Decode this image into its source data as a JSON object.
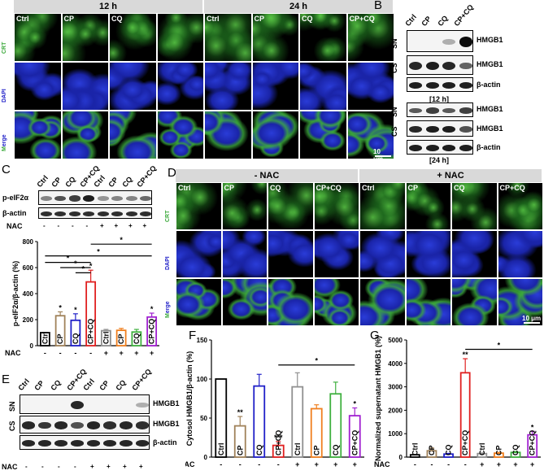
{
  "panel_letters": {
    "a": "A",
    "b": "B",
    "c": "C",
    "d": "D",
    "e": "E",
    "f": "F",
    "g": "G"
  },
  "panel_a": {
    "headers": [
      "12 h",
      "24 h"
    ],
    "columns": [
      "Ctrl",
      "CP",
      "CQ",
      "",
      "Ctrl",
      "CP",
      "CQ",
      "CP+CQ"
    ],
    "rows": [
      "CRT",
      "DAPI",
      "Merge"
    ],
    "scale_bar": "10 μm"
  },
  "panel_b": {
    "lanes": [
      "Ctrl",
      "CP",
      "CQ",
      "CP+CQ"
    ],
    "side": [
      "SN",
      "CS",
      "SN",
      "CS"
    ],
    "rows_12": [
      "HMGB1",
      "HMGB1",
      "β-actin"
    ],
    "time_12": "[12 h]",
    "rows_24": [
      "HMGB1",
      "HMGB1",
      "β-actin"
    ],
    "time_24": "[24 h]"
  },
  "panel_c_blot": {
    "lanes": [
      "Ctrl",
      "CP",
      "CQ",
      "CP+CQ",
      "Ctrl",
      "CP",
      "CQ",
      "CP+CQ"
    ],
    "rows": [
      "p-eIF2α",
      "β-actin"
    ],
    "nac_label": "NAC",
    "nac_signs": [
      "-",
      "-",
      "-",
      "-",
      "+",
      "+",
      "+",
      "+"
    ]
  },
  "panel_d": {
    "headers": [
      "- NAC",
      "+ NAC"
    ],
    "columns": [
      "Ctrl",
      "CP",
      "CQ",
      "CP+CQ",
      "Ctrl",
      "CP",
      "CQ",
      "CP+CQ"
    ],
    "rows": [
      "CRT",
      "DAPI",
      "Merge"
    ],
    "scale_bar": "10 μm"
  },
  "panel_e": {
    "lanes": [
      "Ctrl",
      "CP",
      "CQ",
      "CP+CQ",
      "Ctrl",
      "CP",
      "CQ",
      "CP+CQ"
    ],
    "side": [
      "SN",
      "CS"
    ],
    "rows": [
      "HMGB1",
      "HMGB1",
      "β-actin"
    ],
    "nac_label": "NAC",
    "nac_signs": [
      "-",
      "-",
      "-",
      "-",
      "+",
      "+",
      "+",
      "+"
    ]
  },
  "chart_data": [
    {
      "type": "bar",
      "title": "",
      "ylabel": "p-eIF2α/β-actin (%)",
      "ylim": [
        0,
        800
      ],
      "yticks": [
        0,
        200,
        400,
        600,
        800
      ],
      "categories": [
        "Ctrl",
        "CP",
        "CQ",
        "CP+CQ",
        "Ctrl",
        "CP",
        "CQ",
        "CP+CQ"
      ],
      "values": [
        100,
        230,
        195,
        490,
        115,
        118,
        105,
        220
      ],
      "errors": [
        0,
        30,
        50,
        90,
        10,
        15,
        20,
        30
      ],
      "colors": [
        "#000000",
        "#a0825a",
        "#2020c8",
        "#e02020",
        "#909090",
        "#f08020",
        "#40b040",
        "#a020d0"
      ],
      "annotations": [
        "",
        "*",
        "*",
        "*",
        "",
        "",
        "",
        "*"
      ],
      "bracket_marks": [
        "*",
        "*",
        "*",
        "*",
        "*"
      ],
      "nac_label": "NAC",
      "nac_signs": [
        "-",
        "-",
        "-",
        "-",
        "+",
        "+",
        "+",
        "+"
      ]
    },
    {
      "type": "bar",
      "title": "",
      "ylabel": "Cytosol HMGB1/β-actin (%)",
      "ylim": [
        0,
        150
      ],
      "yticks": [
        0,
        50,
        100,
        150
      ],
      "categories": [
        "Ctrl",
        "CP",
        "CQ",
        "CP+CQ",
        "Ctrl",
        "CP",
        "CQ",
        "CP+CQ"
      ],
      "values": [
        100,
        40,
        91,
        15,
        90,
        62,
        81,
        53
      ],
      "errors": [
        0,
        12,
        15,
        5,
        18,
        5,
        15,
        10
      ],
      "colors": [
        "#000000",
        "#a0825a",
        "#2020c8",
        "#e02020",
        "#909090",
        "#f08020",
        "#40b040",
        "#a020d0"
      ],
      "annotations": [
        "",
        "**",
        "",
        "***",
        "",
        "",
        "",
        "*"
      ],
      "bracket_marks": [
        "*"
      ],
      "nac_label": "NAC",
      "nac_signs": [
        "-",
        "-",
        "-",
        "-",
        "+",
        "+",
        "+",
        "+"
      ]
    },
    {
      "type": "bar",
      "title": "",
      "ylabel": "Normalized supernatant HMGB1 (%)",
      "ylim": [
        0,
        5000
      ],
      "yticks": [
        0,
        1000,
        2000,
        3000,
        4000,
        5000
      ],
      "categories": [
        "Ctrl",
        "CP",
        "CQ",
        "CP+CQ",
        "Ctrl",
        "CP",
        "CQ",
        "CP+CQ"
      ],
      "values": [
        100,
        270,
        130,
        3600,
        150,
        170,
        200,
        950
      ],
      "errors": [
        0,
        120,
        30,
        600,
        30,
        30,
        40,
        150
      ],
      "colors": [
        "#000000",
        "#a0825a",
        "#2020c8",
        "#e02020",
        "#909090",
        "#f08020",
        "#40b040",
        "#a020d0"
      ],
      "annotations": [
        "",
        "",
        "",
        "**",
        "",
        "",
        "",
        "*"
      ],
      "bracket_marks": [
        "*"
      ],
      "nac_label": "NAC",
      "nac_signs": [
        "-",
        "-",
        "-",
        "-",
        "+",
        "+",
        "+",
        "+"
      ]
    }
  ]
}
